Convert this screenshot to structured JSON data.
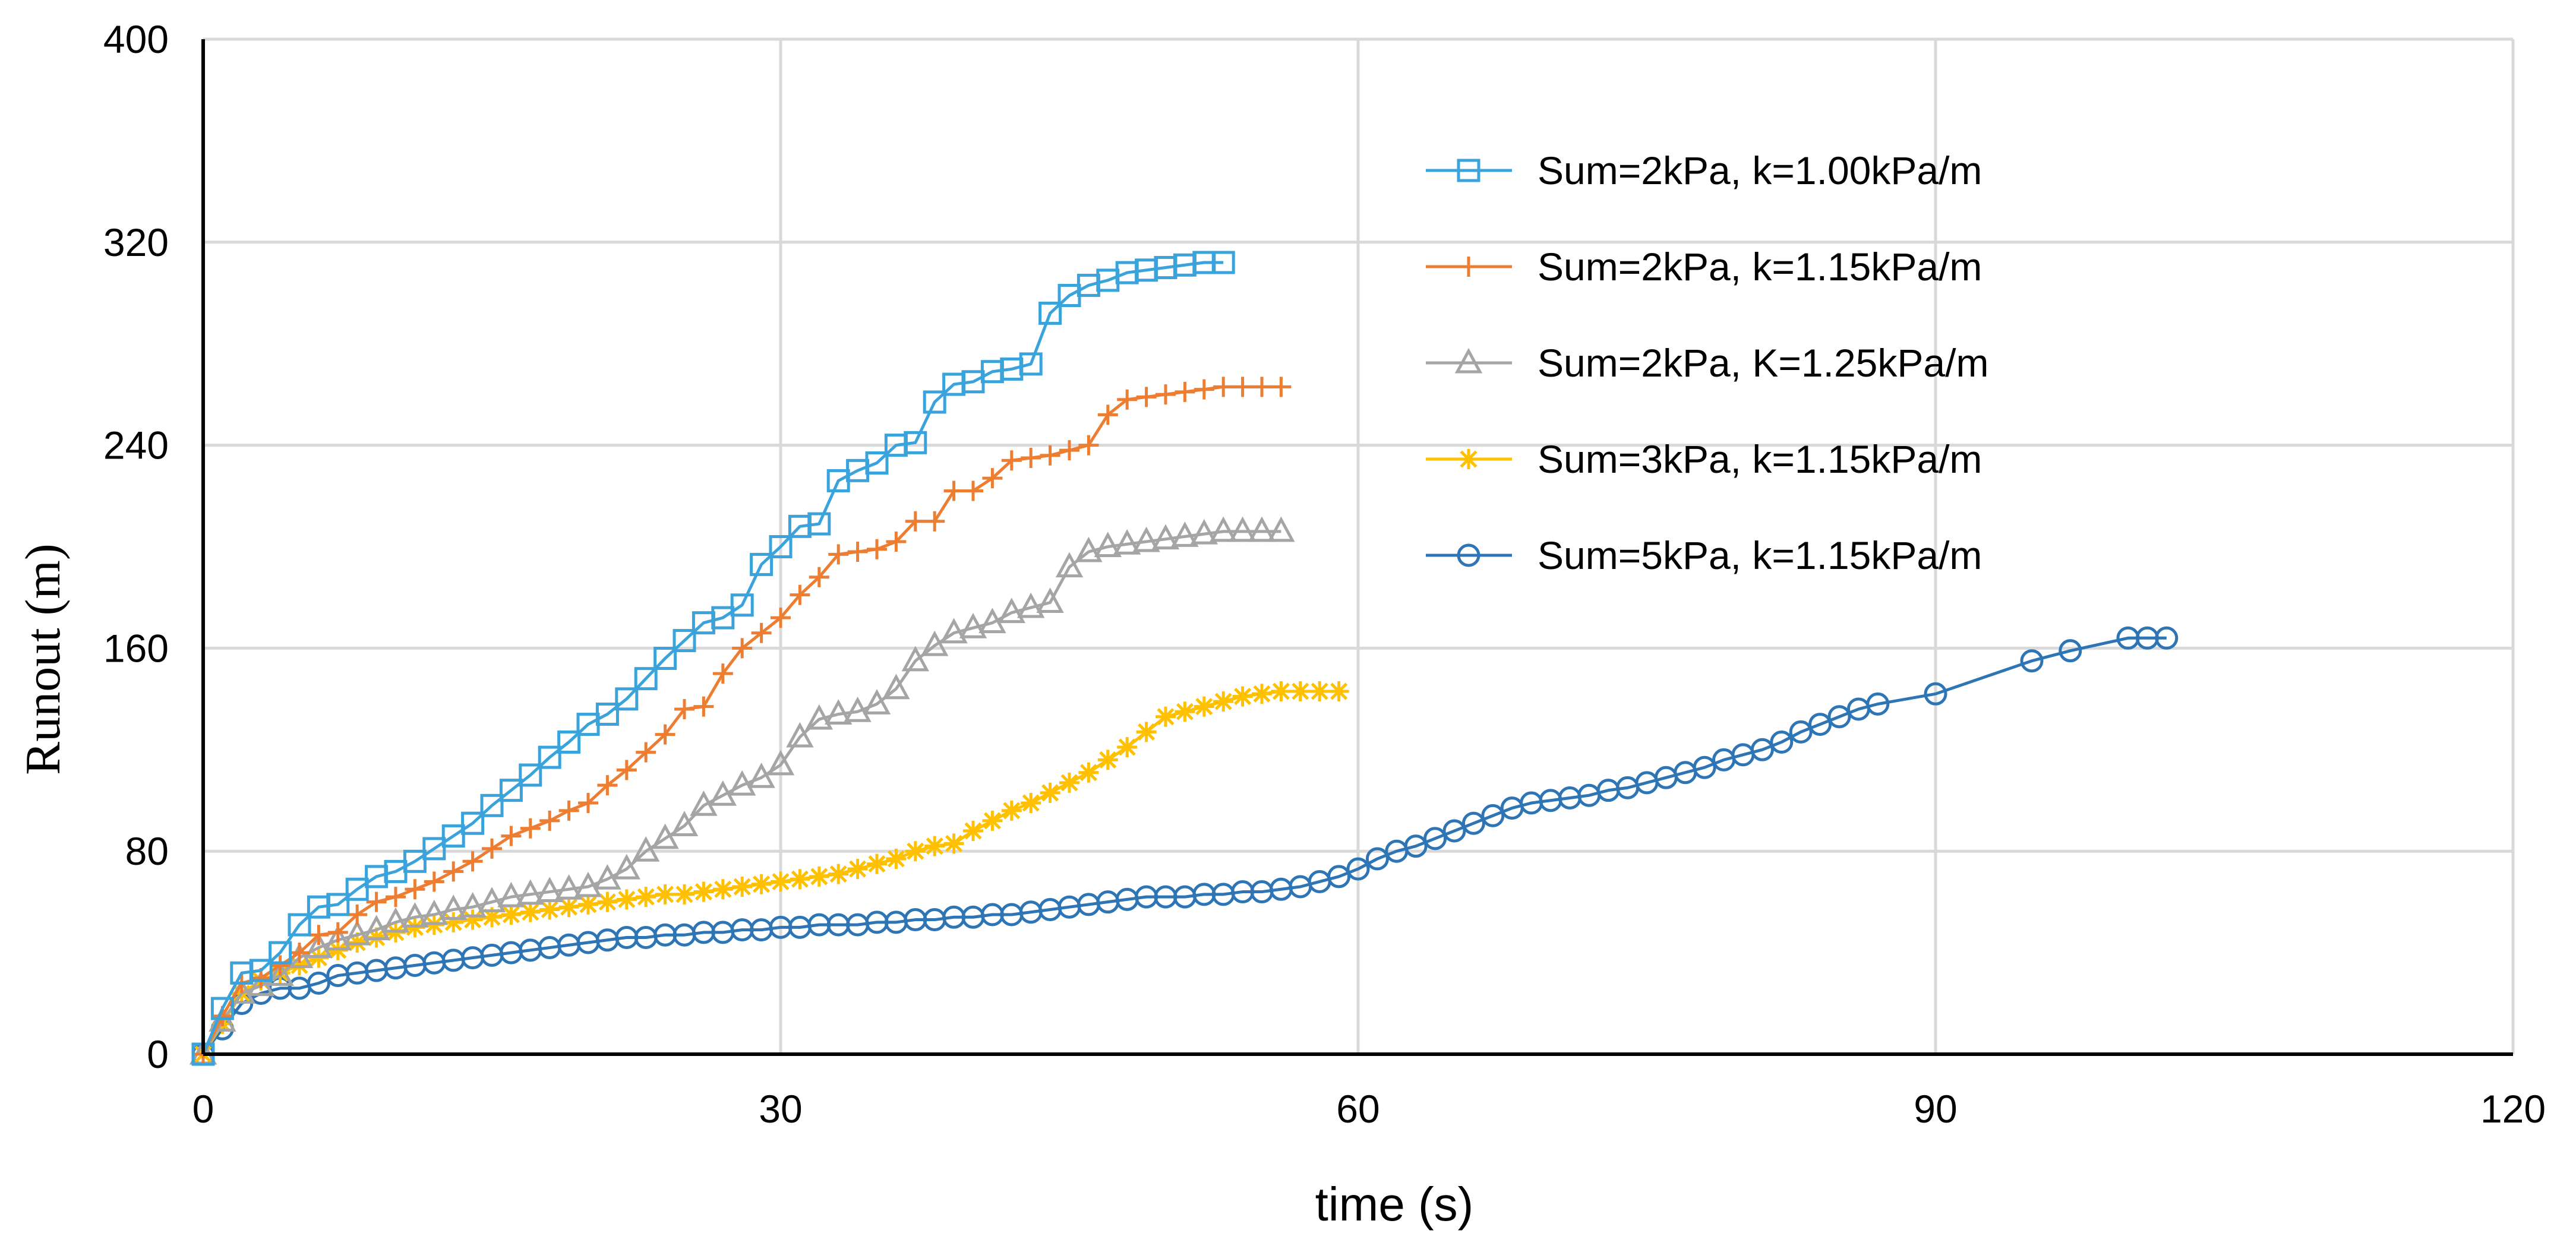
{
  "chart_data": {
    "type": "line",
    "title": "",
    "xlabel": "time (s)",
    "ylabel": "Runout  (m)",
    "xlim": [
      0,
      120
    ],
    "ylim": [
      0,
      400
    ],
    "xticks": [
      0,
      30,
      60,
      90,
      120
    ],
    "yticks": [
      0,
      80,
      160,
      240,
      320,
      400
    ],
    "xtick_labels": [
      "0",
      "30",
      "60",
      "90",
      "120"
    ],
    "ytick_labels": [
      "0",
      "80",
      "160",
      "240",
      "320",
      "400"
    ],
    "grid": true,
    "legend_position": "top-right",
    "series": [
      {
        "name": "Sum=2kPa, k=1.00kPa/m",
        "color": "#3aa3dc",
        "marker": "square",
        "points": [
          [
            0,
            0
          ],
          [
            1,
            18
          ],
          [
            2,
            32
          ],
          [
            3,
            33
          ],
          [
            4,
            40
          ],
          [
            5,
            51
          ],
          [
            6,
            58
          ],
          [
            7,
            59
          ],
          [
            8,
            65
          ],
          [
            9,
            70
          ],
          [
            10,
            72
          ],
          [
            11,
            76
          ],
          [
            12,
            81
          ],
          [
            13,
            86
          ],
          [
            14,
            91
          ],
          [
            15,
            98
          ],
          [
            16,
            104
          ],
          [
            17,
            110
          ],
          [
            18,
            117
          ],
          [
            19,
            123
          ],
          [
            20,
            130
          ],
          [
            21,
            134
          ],
          [
            22,
            140
          ],
          [
            23,
            148
          ],
          [
            24,
            156
          ],
          [
            25,
            163
          ],
          [
            26,
            170
          ],
          [
            27,
            172
          ],
          [
            28,
            177
          ],
          [
            29,
            193
          ],
          [
            30,
            200
          ],
          [
            31,
            208
          ],
          [
            32,
            209
          ],
          [
            33,
            226
          ],
          [
            34,
            230
          ],
          [
            35,
            233
          ],
          [
            36,
            240
          ],
          [
            37,
            241
          ],
          [
            38,
            257
          ],
          [
            39,
            264
          ],
          [
            40,
            265
          ],
          [
            41,
            269
          ],
          [
            42,
            270
          ],
          [
            43,
            272
          ],
          [
            44,
            292
          ],
          [
            45,
            299
          ],
          [
            46,
            303
          ],
          [
            47,
            305
          ],
          [
            48,
            308
          ],
          [
            49,
            309
          ],
          [
            50,
            310
          ],
          [
            51,
            311
          ],
          [
            52,
            312
          ],
          [
            53,
            312
          ]
        ]
      },
      {
        "name": "Sum=2kPa, k=1.15kPa/m",
        "color": "#ed7d31",
        "marker": "plus",
        "points": [
          [
            0,
            0
          ],
          [
            1,
            15
          ],
          [
            2,
            28
          ],
          [
            3,
            30
          ],
          [
            4,
            35
          ],
          [
            5,
            40
          ],
          [
            6,
            47
          ],
          [
            7,
            48
          ],
          [
            8,
            55
          ],
          [
            9,
            60
          ],
          [
            10,
            62
          ],
          [
            11,
            65
          ],
          [
            12,
            68
          ],
          [
            13,
            72
          ],
          [
            14,
            76
          ],
          [
            15,
            81
          ],
          [
            16,
            86
          ],
          [
            17,
            89
          ],
          [
            18,
            92
          ],
          [
            19,
            96
          ],
          [
            20,
            99
          ],
          [
            21,
            106
          ],
          [
            22,
            112
          ],
          [
            23,
            119
          ],
          [
            24,
            126
          ],
          [
            25,
            136
          ],
          [
            26,
            137
          ],
          [
            27,
            150
          ],
          [
            28,
            160
          ],
          [
            29,
            166
          ],
          [
            30,
            172
          ],
          [
            31,
            181
          ],
          [
            32,
            188
          ],
          [
            33,
            197
          ],
          [
            34,
            198
          ],
          [
            35,
            199
          ],
          [
            36,
            202
          ],
          [
            37,
            210
          ],
          [
            38,
            210
          ],
          [
            39,
            222
          ],
          [
            40,
            222
          ],
          [
            41,
            227
          ],
          [
            42,
            234
          ],
          [
            43,
            235
          ],
          [
            44,
            236
          ],
          [
            45,
            238
          ],
          [
            46,
            240
          ],
          [
            47,
            252
          ],
          [
            48,
            258
          ],
          [
            49,
            259
          ],
          [
            50,
            260
          ],
          [
            51,
            261
          ],
          [
            52,
            262
          ],
          [
            53,
            263
          ],
          [
            54,
            263
          ],
          [
            55,
            263
          ],
          [
            56,
            263
          ]
        ]
      },
      {
        "name": "Sum=2kPa, K=1.25kPa/m",
        "color": "#a5a5a5",
        "marker": "triangle",
        "points": [
          [
            0,
            0
          ],
          [
            1,
            13
          ],
          [
            2,
            24
          ],
          [
            3,
            27
          ],
          [
            4,
            31
          ],
          [
            5,
            38
          ],
          [
            6,
            42
          ],
          [
            7,
            45
          ],
          [
            8,
            47
          ],
          [
            9,
            49
          ],
          [
            10,
            52
          ],
          [
            11,
            54
          ],
          [
            12,
            55
          ],
          [
            13,
            57
          ],
          [
            14,
            58
          ],
          [
            15,
            60
          ],
          [
            16,
            62
          ],
          [
            17,
            63
          ],
          [
            18,
            64
          ],
          [
            19,
            65
          ],
          [
            20,
            66
          ],
          [
            21,
            69
          ],
          [
            22,
            73
          ],
          [
            23,
            80
          ],
          [
            24,
            85
          ],
          [
            25,
            90
          ],
          [
            26,
            98
          ],
          [
            27,
            102
          ],
          [
            28,
            106
          ],
          [
            29,
            109
          ],
          [
            30,
            114
          ],
          [
            31,
            125
          ],
          [
            32,
            132
          ],
          [
            33,
            134
          ],
          [
            34,
            135
          ],
          [
            35,
            138
          ],
          [
            36,
            144
          ],
          [
            37,
            155
          ],
          [
            38,
            161
          ],
          [
            39,
            166
          ],
          [
            40,
            168
          ],
          [
            41,
            170
          ],
          [
            42,
            174
          ],
          [
            43,
            176
          ],
          [
            44,
            178
          ],
          [
            45,
            192
          ],
          [
            46,
            198
          ],
          [
            47,
            200
          ],
          [
            48,
            201
          ],
          [
            49,
            202
          ],
          [
            50,
            203
          ],
          [
            51,
            204
          ],
          [
            52,
            205
          ],
          [
            53,
            206
          ],
          [
            54,
            206
          ],
          [
            55,
            206
          ],
          [
            56,
            206
          ]
        ]
      },
      {
        "name": "Sum=3kPa, k=1.15kPa/m",
        "color": "#ffc000",
        "marker": "asterisk",
        "points": [
          [
            0,
            0
          ],
          [
            1,
            12
          ],
          [
            2,
            24
          ],
          [
            3,
            29
          ],
          [
            4,
            32
          ],
          [
            5,
            35
          ],
          [
            6,
            38
          ],
          [
            7,
            41
          ],
          [
            8,
            44
          ],
          [
            9,
            46
          ],
          [
            10,
            48
          ],
          [
            11,
            50
          ],
          [
            12,
            51
          ],
          [
            13,
            52
          ],
          [
            14,
            53
          ],
          [
            15,
            54
          ],
          [
            16,
            55
          ],
          [
            17,
            56
          ],
          [
            18,
            57
          ],
          [
            19,
            58
          ],
          [
            20,
            59
          ],
          [
            21,
            60
          ],
          [
            22,
            61
          ],
          [
            23,
            62
          ],
          [
            24,
            63
          ],
          [
            25,
            63
          ],
          [
            26,
            64
          ],
          [
            27,
            65
          ],
          [
            28,
            66
          ],
          [
            29,
            67
          ],
          [
            30,
            68
          ],
          [
            31,
            69
          ],
          [
            32,
            70
          ],
          [
            33,
            71
          ],
          [
            34,
            73
          ],
          [
            35,
            75
          ],
          [
            36,
            77
          ],
          [
            37,
            80
          ],
          [
            38,
            82
          ],
          [
            39,
            83
          ],
          [
            40,
            88
          ],
          [
            41,
            92
          ],
          [
            42,
            96
          ],
          [
            43,
            99
          ],
          [
            44,
            103
          ],
          [
            45,
            107
          ],
          [
            46,
            111
          ],
          [
            47,
            116
          ],
          [
            48,
            121
          ],
          [
            49,
            127
          ],
          [
            50,
            133
          ],
          [
            51,
            135
          ],
          [
            52,
            137
          ],
          [
            53,
            139
          ],
          [
            54,
            141
          ],
          [
            55,
            142
          ],
          [
            56,
            143
          ],
          [
            57,
            143
          ],
          [
            58,
            143
          ],
          [
            59,
            143
          ]
        ]
      },
      {
        "name": "Sum=5kPa, k=1.15kPa/m",
        "color": "#2e75b6",
        "marker": "circle",
        "points": [
          [
            0,
            0
          ],
          [
            1,
            10
          ],
          [
            2,
            20
          ],
          [
            3,
            24
          ],
          [
            4,
            26
          ],
          [
            5,
            26
          ],
          [
            6,
            28
          ],
          [
            7,
            31
          ],
          [
            8,
            32
          ],
          [
            9,
            33
          ],
          [
            10,
            34
          ],
          [
            11,
            35
          ],
          [
            12,
            36
          ],
          [
            13,
            37
          ],
          [
            14,
            38
          ],
          [
            15,
            39
          ],
          [
            16,
            40
          ],
          [
            17,
            41
          ],
          [
            18,
            42
          ],
          [
            19,
            43
          ],
          [
            20,
            44
          ],
          [
            21,
            45
          ],
          [
            22,
            46
          ],
          [
            23,
            46
          ],
          [
            24,
            47
          ],
          [
            25,
            47
          ],
          [
            26,
            48
          ],
          [
            27,
            48
          ],
          [
            28,
            49
          ],
          [
            29,
            49
          ],
          [
            30,
            50
          ],
          [
            31,
            50
          ],
          [
            32,
            51
          ],
          [
            33,
            51
          ],
          [
            34,
            51
          ],
          [
            35,
            52
          ],
          [
            36,
            52
          ],
          [
            37,
            53
          ],
          [
            38,
            53
          ],
          [
            39,
            54
          ],
          [
            40,
            54
          ],
          [
            41,
            55
          ],
          [
            42,
            55
          ],
          [
            43,
            56
          ],
          [
            44,
            57
          ],
          [
            45,
            58
          ],
          [
            46,
            59
          ],
          [
            47,
            60
          ],
          [
            48,
            61
          ],
          [
            49,
            62
          ],
          [
            50,
            62
          ],
          [
            51,
            62
          ],
          [
            52,
            63
          ],
          [
            53,
            63
          ],
          [
            54,
            64
          ],
          [
            55,
            64
          ],
          [
            56,
            65
          ],
          [
            57,
            66
          ],
          [
            58,
            68
          ],
          [
            59,
            70
          ],
          [
            60,
            73
          ],
          [
            61,
            77
          ],
          [
            62,
            80
          ],
          [
            63,
            82
          ],
          [
            64,
            85
          ],
          [
            65,
            88
          ],
          [
            66,
            91
          ],
          [
            67,
            94
          ],
          [
            68,
            97
          ],
          [
            69,
            99
          ],
          [
            70,
            100
          ],
          [
            71,
            101
          ],
          [
            72,
            102
          ],
          [
            73,
            104
          ],
          [
            74,
            105
          ],
          [
            75,
            107
          ],
          [
            76,
            109
          ],
          [
            77,
            111
          ],
          [
            78,
            113
          ],
          [
            79,
            116
          ],
          [
            80,
            118
          ],
          [
            81,
            120
          ],
          [
            82,
            123
          ],
          [
            83,
            127
          ],
          [
            84,
            130
          ],
          [
            85,
            133
          ],
          [
            86,
            136
          ],
          [
            87,
            138
          ],
          [
            90,
            142
          ],
          [
            95,
            155
          ],
          [
            97,
            159
          ],
          [
            100,
            164
          ],
          [
            101,
            164
          ],
          [
            102,
            164
          ]
        ]
      }
    ]
  }
}
